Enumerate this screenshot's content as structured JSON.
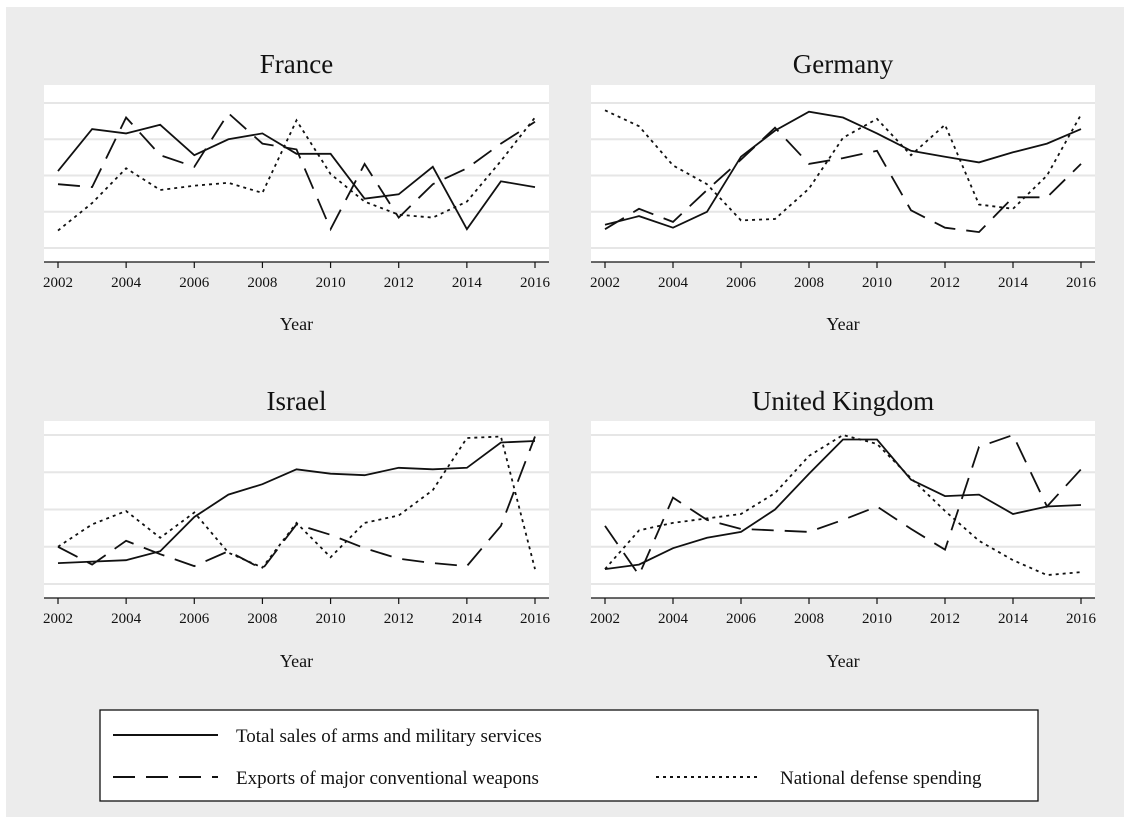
{
  "chart_data": {
    "type": "line",
    "legend_position": "bottom",
    "grid": true,
    "y_axis_labels_shown": false,
    "series_definitions": [
      {
        "name": "Total sales of arms and military services",
        "style": "solid"
      },
      {
        "name": "Exports of major conventional weapons",
        "style": "dashed"
      },
      {
        "name": "National defense spending",
        "style": "dotted"
      }
    ],
    "panels": [
      {
        "title": "France",
        "xlabel": "Year",
        "x": [
          2002,
          2003,
          2004,
          2005,
          2006,
          2007,
          2008,
          2009,
          2010,
          2011,
          2012,
          2013,
          2014,
          2015,
          2016
        ],
        "x_ticks": [
          2002,
          2004,
          2006,
          2008,
          2010,
          2012,
          2014,
          2016
        ],
        "ylim": [
          0,
          1
        ],
        "series": [
          {
            "name": "Total sales of arms and military services",
            "values": [
              0.53,
              0.82,
              0.79,
              0.85,
              0.64,
              0.75,
              0.79,
              0.65,
              0.65,
              0.34,
              0.37,
              0.56,
              0.13,
              0.46,
              0.42
            ]
          },
          {
            "name": "Exports of major conventional weapons",
            "values": [
              0.44,
              0.42,
              0.9,
              0.64,
              0.56,
              0.93,
              0.72,
              0.68,
              0.13,
              0.58,
              0.21,
              0.44,
              0.55,
              0.72,
              0.87
            ]
          },
          {
            "name": "National defense spending",
            "values": [
              0.12,
              0.31,
              0.55,
              0.4,
              0.43,
              0.45,
              0.38,
              0.88,
              0.51,
              0.32,
              0.23,
              0.21,
              0.32,
              0.6,
              0.9
            ]
          }
        ]
      },
      {
        "title": "Germany",
        "xlabel": "Year",
        "x": [
          2002,
          2003,
          2004,
          2005,
          2006,
          2007,
          2008,
          2009,
          2010,
          2011,
          2012,
          2013,
          2014,
          2015,
          2016
        ],
        "x_ticks": [
          2002,
          2004,
          2006,
          2008,
          2010,
          2012,
          2014,
          2016
        ],
        "ylim": [
          0,
          1
        ],
        "series": [
          {
            "name": "Total sales of arms and military services",
            "values": [
              0.16,
              0.22,
              0.14,
              0.25,
              0.63,
              0.81,
              0.94,
              0.9,
              0.79,
              0.67,
              0.63,
              0.59,
              0.66,
              0.72,
              0.82
            ]
          },
          {
            "name": "Exports of major conventional weapons",
            "values": [
              0.13,
              0.27,
              0.18,
              0.4,
              0.61,
              0.83,
              0.58,
              0.62,
              0.67,
              0.26,
              0.14,
              0.11,
              0.35,
              0.35,
              0.58
            ]
          },
          {
            "name": "National defense spending",
            "values": [
              0.95,
              0.84,
              0.57,
              0.44,
              0.19,
              0.2,
              0.41,
              0.76,
              0.89,
              0.64,
              0.85,
              0.3,
              0.27,
              0.5,
              0.92
            ]
          }
        ]
      },
      {
        "title": "Israel",
        "xlabel": "Year",
        "x": [
          2002,
          2003,
          2004,
          2005,
          2006,
          2007,
          2008,
          2009,
          2010,
          2011,
          2012,
          2013,
          2014,
          2015,
          2016
        ],
        "x_ticks": [
          2002,
          2004,
          2006,
          2008,
          2010,
          2012,
          2014,
          2016
        ],
        "ylim": [
          0,
          1
        ],
        "series": [
          {
            "name": "Total sales of arms and military services",
            "values": [
              0.14,
              0.15,
              0.16,
              0.22,
              0.45,
              0.6,
              0.67,
              0.77,
              0.74,
              0.73,
              0.78,
              0.77,
              0.78,
              0.95,
              0.96
            ]
          },
          {
            "name": "Exports of major conventional weapons",
            "values": [
              0.25,
              0.13,
              0.29,
              0.2,
              0.12,
              0.22,
              0.1,
              0.4,
              0.33,
              0.24,
              0.17,
              0.14,
              0.12,
              0.39,
              0.99
            ]
          },
          {
            "name": "National defense spending",
            "values": [
              0.25,
              0.4,
              0.49,
              0.31,
              0.48,
              0.21,
              0.11,
              0.41,
              0.18,
              0.41,
              0.46,
              0.63,
              0.98,
              0.99,
              0.1
            ]
          }
        ]
      },
      {
        "title": "United Kingdom",
        "xlabel": "Year",
        "x": [
          2002,
          2003,
          2004,
          2005,
          2006,
          2007,
          2008,
          2009,
          2010,
          2011,
          2012,
          2013,
          2014,
          2015,
          2016
        ],
        "x_ticks": [
          2002,
          2004,
          2006,
          2008,
          2010,
          2012,
          2014,
          2016
        ],
        "ylim": [
          0,
          1
        ],
        "series": [
          {
            "name": "Total sales of arms and military services",
            "values": [
              0.1,
              0.13,
              0.24,
              0.31,
              0.35,
              0.5,
              0.74,
              0.97,
              0.97,
              0.7,
              0.59,
              0.6,
              0.47,
              0.52,
              0.53
            ]
          },
          {
            "name": "Exports of major conventional weapons",
            "values": [
              0.39,
              0.06,
              0.58,
              0.43,
              0.37,
              0.36,
              0.35,
              0.43,
              0.52,
              0.37,
              0.23,
              0.92,
              1.0,
              0.52,
              0.77
            ]
          },
          {
            "name": "National defense spending",
            "values": [
              0.1,
              0.36,
              0.41,
              0.44,
              0.47,
              0.61,
              0.86,
              1.0,
              0.94,
              0.71,
              0.49,
              0.29,
              0.16,
              0.06,
              0.08
            ]
          }
        ]
      }
    ]
  },
  "legend": {
    "items": [
      {
        "label": "Total sales of arms and military services",
        "style": "solid"
      },
      {
        "label": "Exports of major conventional weapons",
        "style": "dashed"
      },
      {
        "label": "National defense spending",
        "style": "dotted"
      }
    ]
  },
  "colors": {
    "page_background": "#ececec",
    "plot_background": "#ffffff",
    "gridline": "#e6e6e6",
    "line": "#111111"
  }
}
